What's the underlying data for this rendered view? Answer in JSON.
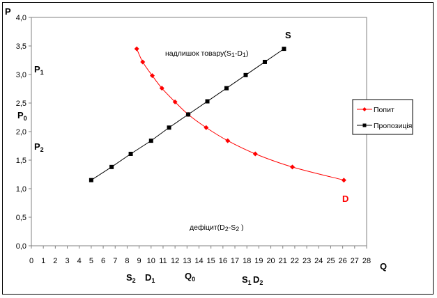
{
  "chart_data": {
    "type": "line",
    "title": "",
    "xlabel": "Q",
    "ylabel": "P",
    "xlim": [
      0,
      28
    ],
    "ylim": [
      0,
      4.0
    ],
    "x_ticks": [
      "0",
      "1",
      "2",
      "3",
      "4",
      "5",
      "6",
      "7",
      "8",
      "9",
      "10",
      "11",
      "12",
      "13",
      "14",
      "15",
      "16",
      "17",
      "18",
      "19",
      "20",
      "21",
      "22",
      "23",
      "24",
      "25",
      "26",
      "27",
      "28"
    ],
    "y_ticks": [
      "0,0",
      "0,5",
      "1,0",
      "1,5",
      "2,0",
      "2,5",
      "3,0",
      "3,5",
      "4,0"
    ],
    "grid": false,
    "legend": "right",
    "series": [
      {
        "name": "Попит",
        "color": "#ff0000",
        "marker": "diamond",
        "smooth": true,
        "x": [
          8.8,
          9.3,
          10.1,
          10.9,
          12.0,
          13.1,
          14.6,
          16.4,
          18.7,
          21.8,
          26.1
        ],
        "y": [
          3.45,
          3.22,
          2.98,
          2.76,
          2.52,
          2.3,
          2.07,
          1.84,
          1.61,
          1.38,
          1.15
        ]
      },
      {
        "name": "Пропозиція",
        "color": "#000000",
        "marker": "square",
        "smooth": false,
        "x": [
          5.0,
          6.7,
          8.3,
          10.0,
          11.5,
          13.1,
          14.7,
          16.3,
          17.9,
          19.5,
          21.1
        ],
        "y": [
          1.15,
          1.38,
          1.61,
          1.84,
          2.07,
          2.3,
          2.53,
          2.76,
          2.99,
          3.22,
          3.45
        ]
      }
    ],
    "annotations": {
      "surplus": {
        "main": "надлишок товару(S",
        "s1": "1",
        "mid": "-D",
        "s2": "1",
        "end": ")"
      },
      "deficit": {
        "main": "дефіцит(D",
        "s1": "2",
        "mid": "-S",
        "s2": "2",
        "end": " )"
      },
      "curve_s": "S",
      "curve_d": "D",
      "p1": {
        "main": "P",
        "sub": "1"
      },
      "p0": {
        "main": "P",
        "sub": "0"
      },
      "p2": {
        "main": "P",
        "sub": "2"
      },
      "s2": {
        "main": "S",
        "sub": "2"
      },
      "d1": {
        "main": "D",
        "sub": "1"
      },
      "q0": {
        "main": "Q",
        "sub": "0"
      },
      "s1": {
        "main": "S",
        "sub": "1"
      },
      "d2": {
        "main": "D",
        "sub": "2"
      }
    }
  }
}
